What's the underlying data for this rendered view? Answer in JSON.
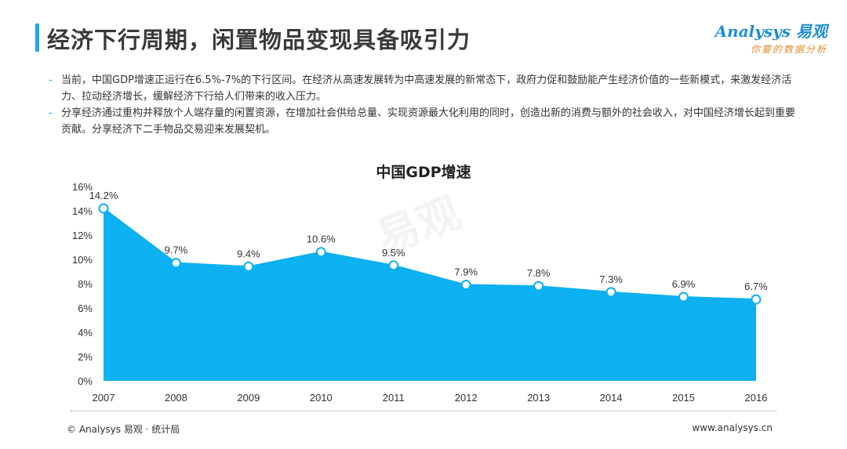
{
  "header": {
    "title": "经济下行周期，闲置物品变现具备吸引力",
    "logo_text": "Analysys 易观",
    "logo_tagline": "你要的数据分析"
  },
  "bullets": [
    "当前，中国GDP增速正运行在6.5%-7%的下行区间。在经济从高速发展转为中高速发展的新常态下，政府力促和鼓励能产生经济价值的一些新模式，来激发经济活力、拉动经济增长，缓解经济下行给人们带来的收入压力。",
    "分享经济通过重构并释放个人端存量的闲置资源，在增加社会供给总量、实现资源最大化利用的同时，创造出新的消费与额外的社会收入，对中国经济增长起到重要贡献。分享经济下二手物品交易迎来发展契机。"
  ],
  "bullet_marker": "-",
  "chart_data": {
    "type": "area",
    "title": "中国GDP增速",
    "x": [
      "2007",
      "2008",
      "2009",
      "2010",
      "2011",
      "2012",
      "2013",
      "2014",
      "2015",
      "2016"
    ],
    "values": [
      14.2,
      9.7,
      9.4,
      10.6,
      9.5,
      7.9,
      7.8,
      7.3,
      6.9,
      6.7
    ],
    "data_labels": [
      "14.2%",
      "9.7%",
      "9.4%",
      "10.6%",
      "9.5%",
      "7.9%",
      "7.8%",
      "7.3%",
      "6.9%",
      "6.7%"
    ],
    "yticks": [
      "0%",
      "2%",
      "4%",
      "6%",
      "8%",
      "10%",
      "12%",
      "14%",
      "16%"
    ],
    "ylim": [
      0,
      16
    ],
    "grid": false,
    "fill_color": "#0db0f0"
  },
  "watermark": "易观",
  "footer": {
    "source": "© Analysys 易观 · 统计局",
    "website": "www.analysys.cn"
  }
}
